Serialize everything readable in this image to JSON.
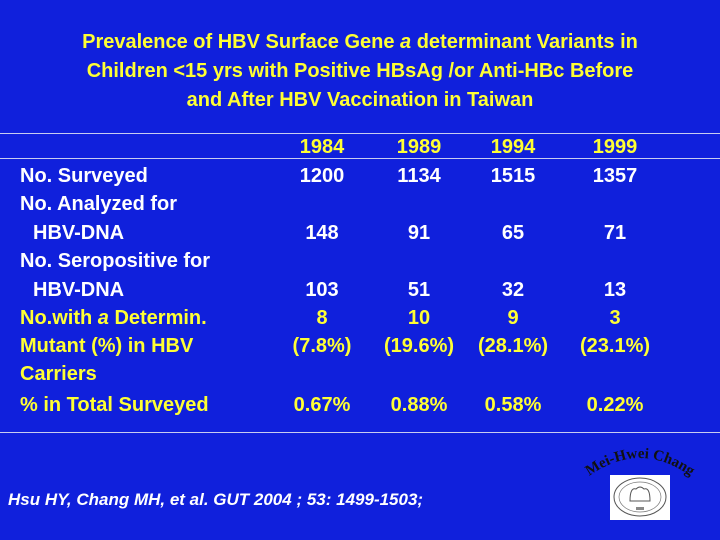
{
  "title": {
    "line1": "Prevalence of HBV Surface Gene a determinant Variants in",
    "line2": "Children <15 yrs with Positive HBsAg /or Anti-HBc  Before",
    "line3": "and After HBV Vaccination in Taiwan"
  },
  "table": {
    "years": [
      "1984",
      "1989",
      "1994",
      "1999"
    ],
    "rows": [
      {
        "label": "No. Surveyed",
        "values": [
          "1200",
          "1134",
          "1515",
          "1357"
        ]
      },
      {
        "label": "No. Analyzed for",
        "values": []
      },
      {
        "label": "HBV-DNA",
        "values": [
          "148",
          "91",
          "65",
          "71"
        ]
      },
      {
        "label": "No. Seropositive for",
        "values": []
      },
      {
        "label": "HBV-DNA",
        "values": [
          "103",
          "51",
          "32",
          "13"
        ]
      },
      {
        "label_pre": "No.with ",
        "label_italic": "a",
        "label_post": " Determin.",
        "values": [
          "8",
          "10",
          "9",
          "3"
        ]
      },
      {
        "label": "Mutant (%) in HBV",
        "values": [
          "(7.8%)",
          "(19.6%)",
          "(28.1%)",
          "(23.1%)"
        ]
      },
      {
        "label": "Carriers",
        "values": []
      },
      {
        "label": "% in Total Surveyed",
        "values": [
          "0.67%",
          "0.88%",
          "0.58%",
          "0.22%"
        ]
      }
    ]
  },
  "citation": "Hsu HY, Chang MH, et al.   GUT 2004 ; 53: 1499-1503;",
  "logo": {
    "signature": "Mei-Hwei Chang"
  },
  "colors": {
    "background": "#1020dc",
    "highlight": "#ffff33",
    "text": "#ffffff"
  }
}
